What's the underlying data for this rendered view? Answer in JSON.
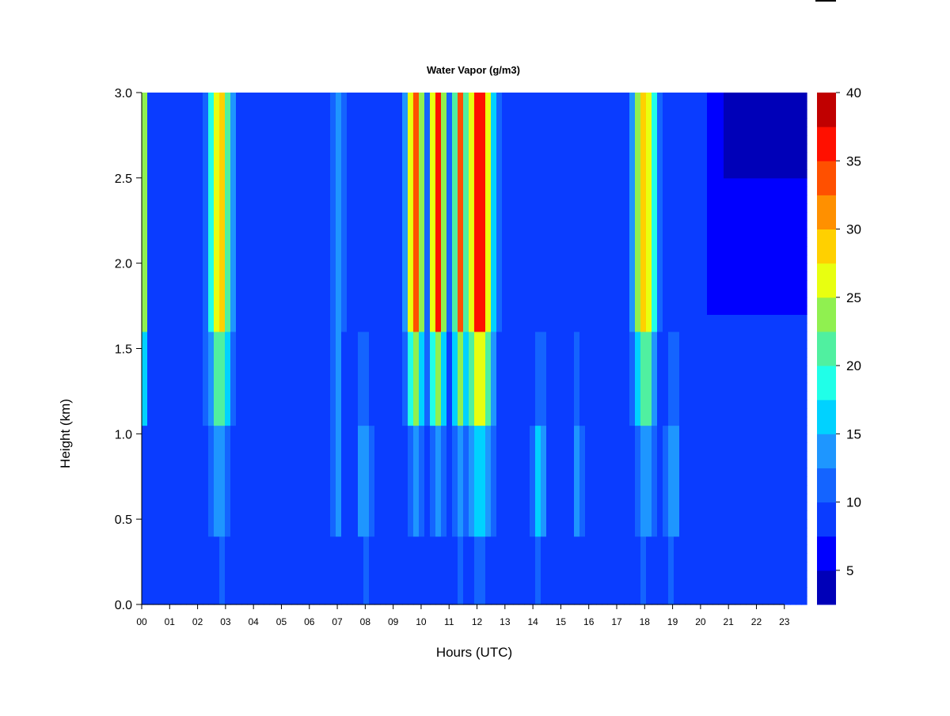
{
  "chart_data": {
    "type": "heatmap",
    "title": "Water Vapor (g/m3)",
    "xlabel": "Hours (UTC)",
    "ylabel": "Height (km)",
    "x_range": [
      0,
      23.8
    ],
    "y_range": [
      0.0,
      3.0
    ],
    "x_ticks": [
      "00",
      "01",
      "02",
      "03",
      "04",
      "05",
      "06",
      "07",
      "08",
      "09",
      "10",
      "11",
      "12",
      "13",
      "14",
      "15",
      "16",
      "17",
      "18",
      "19",
      "20",
      "21",
      "22",
      "23"
    ],
    "y_ticks": [
      "0.0",
      "0.5",
      "1.0",
      "1.5",
      "2.0",
      "2.5",
      "3.0"
    ],
    "colorbar": {
      "min": 2.5,
      "max": 40,
      "levels": [
        2.5,
        5,
        7.5,
        10,
        12.5,
        15,
        17.5,
        20,
        22.5,
        25,
        27.5,
        30,
        32.5,
        35,
        37.5,
        40
      ],
      "tick_labels": [
        "5",
        "10",
        "15",
        "20",
        "25",
        "30",
        "35",
        "40"
      ],
      "colors": [
        "#000080",
        "#0000b8",
        "#0000ff",
        "#0a3cff",
        "#1464ff",
        "#1e96ff",
        "#00d2ff",
        "#20ffe8",
        "#50f0a0",
        "#90f050",
        "#e8ff10",
        "#ffd000",
        "#ff9000",
        "#ff5000",
        "#ff1000",
        "#c00000",
        "#800000"
      ]
    },
    "cells_description_only": false,
    "features": [
      {
        "center_h": 0.05,
        "sigma_h": 0.08,
        "top_val": 26,
        "low_val": 8
      },
      {
        "center_h": 2.8,
        "sigma_h": 0.28,
        "top_val": 29,
        "low_val": 14
      },
      {
        "center_h": 7.0,
        "sigma_h": 0.18,
        "top_val": 14,
        "low_val": 13
      },
      {
        "center_h": 8.0,
        "sigma_h": 0.25,
        "top_val": 8,
        "low_val": 14
      },
      {
        "center_h": 9.8,
        "sigma_h": 0.22,
        "top_val": 34,
        "low_val": 13
      },
      {
        "center_h": 10.6,
        "sigma_h": 0.2,
        "top_val": 36,
        "low_val": 13
      },
      {
        "center_h": 11.4,
        "sigma_h": 0.18,
        "top_val": 34,
        "low_val": 14
      },
      {
        "center_h": 12.1,
        "sigma_h": 0.32,
        "top_val": 38,
        "low_val": 16
      },
      {
        "center_h": 14.2,
        "sigma_h": 0.18,
        "top_val": 8,
        "low_val": 16
      },
      {
        "center_h": 15.6,
        "sigma_h": 0.15,
        "top_val": 8,
        "low_val": 13
      },
      {
        "center_h": 18.0,
        "sigma_h": 0.28,
        "top_val": 30,
        "low_val": 14
      },
      {
        "center_h": 19.0,
        "sigma_h": 0.2,
        "top_val": 9,
        "low_val": 14
      }
    ]
  }
}
